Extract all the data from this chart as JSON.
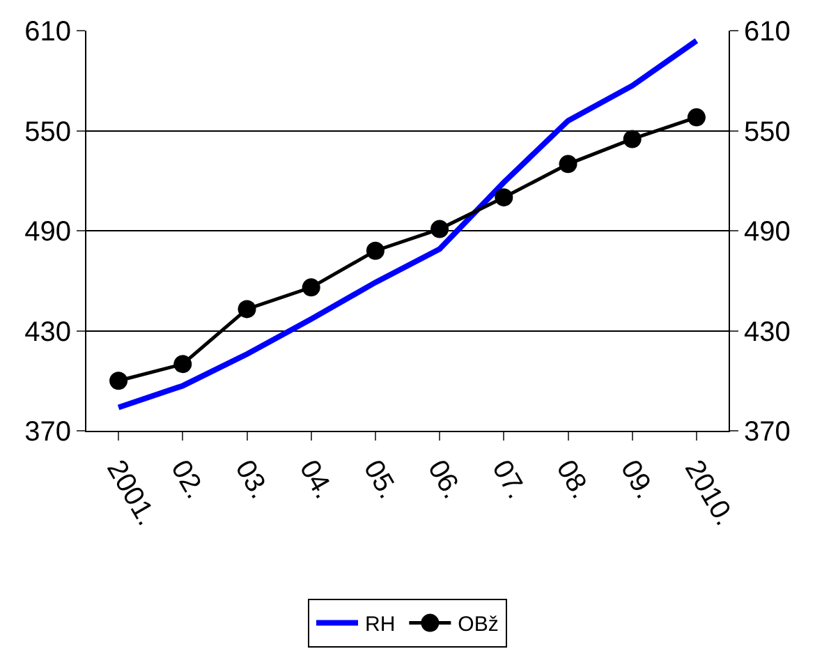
{
  "chart_data": {
    "type": "line",
    "categories": [
      "2001.",
      "02.",
      "03.",
      "04.",
      "05.",
      "06.",
      "07.",
      "08.",
      "09.",
      "2010."
    ],
    "series": [
      {
        "name": "RH",
        "color": "#0000ff",
        "marker": "none",
        "values": [
          384,
          397,
          416,
          437,
          459,
          479,
          519,
          556,
          577,
          604
        ]
      },
      {
        "name": "OBž",
        "color": "#000000",
        "marker": "circle",
        "values": [
          400,
          410,
          443,
          456,
          478,
          491,
          510,
          530,
          545,
          558
        ]
      }
    ],
    "ylim": [
      370,
      610
    ],
    "yticks": [
      370,
      430,
      490,
      550,
      610
    ],
    "y2lim": [
      370,
      610
    ],
    "y2ticks": [
      370,
      430,
      490,
      550,
      610
    ],
    "grid": "y",
    "legend": "bottom",
    "line_style": "solid"
  }
}
